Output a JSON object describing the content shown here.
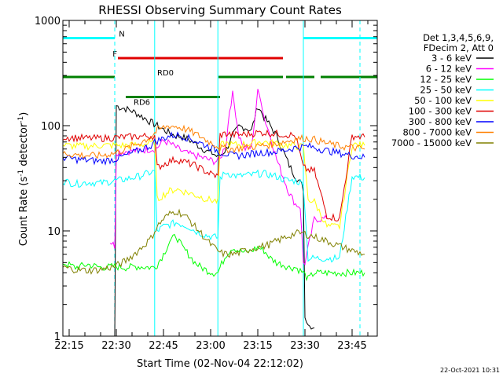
{
  "chart_data": {
    "type": "line",
    "title": "RHESSI Observing Summary Count Rates",
    "xlabel": "Start Time (02-Nov-04 22:12:02)",
    "ylabel_main": "Count Rate (s",
    "ylabel_sup1": "-1",
    "ylabel_mid": " detector",
    "ylabel_sup2": "-1",
    "ylabel_end": ")",
    "yscale": "log",
    "xlim_min": [
      0,
      100
    ],
    "ylim": [
      1,
      1000
    ],
    "xticks": [
      {
        "value": 2,
        "label": "22:15"
      },
      {
        "value": 17,
        "label": "22:30"
      },
      {
        "value": 32,
        "label": "22:45"
      },
      {
        "value": 47,
        "label": "23:00"
      },
      {
        "value": 62,
        "label": "23:15"
      },
      {
        "value": 77,
        "label": "23:30"
      },
      {
        "value": 92,
        "label": "23:45"
      }
    ],
    "yticks": [
      {
        "value": 1,
        "label": "1"
      },
      {
        "value": 10,
        "label": "10"
      },
      {
        "value": 100,
        "label": "100"
      },
      {
        "value": 1000,
        "label": "1000"
      }
    ],
    "legend_header": [
      "Det 1,3,4,5,6,9,",
      "FDecim 2, Att 0"
    ],
    "legend_position": "right",
    "timestamp": "22-Oct-2021 10:31",
    "state_bars": [
      {
        "label": "N",
        "color": "#00ffff",
        "segments": [
          [
            0,
            16.5
          ],
          [
            76.5,
            100
          ]
        ],
        "y": 1.5,
        "label_x": 17.8
      },
      {
        "label": "F",
        "color": "#e00000",
        "segments": [
          [
            17.5,
            70
          ]
        ],
        "y": 3.2,
        "label_x": 15.8
      },
      {
        "label": "RD0",
        "color": "#008000",
        "segments": [
          [
            0,
            16.5
          ],
          [
            49.5,
            70
          ],
          [
            71,
            80
          ],
          [
            82,
            100
          ]
        ],
        "y": 4.8,
        "label_x": 30
      },
      {
        "label": "RD6",
        "color": "#008000",
        "segments": [
          [
            20,
            50
          ]
        ],
        "y": 6.5,
        "label_x": 22.5
      }
    ],
    "vlines": [
      {
        "x": 16.5,
        "style": "dashed"
      },
      {
        "x": 94.5,
        "style": "dashed"
      },
      {
        "x": 29.2,
        "style": "solid"
      },
      {
        "x": 49.3,
        "style": "solid"
      },
      {
        "x": 76.5,
        "style": "solid"
      }
    ],
    "series": [
      {
        "name": "3 - 6 keV",
        "color": "#000000",
        "x": [
          16.5,
          17,
          18,
          20,
          22,
          24,
          26,
          28,
          30,
          32,
          34,
          36,
          38,
          40,
          42,
          44,
          46,
          48,
          49.3,
          50,
          52,
          54,
          56,
          58,
          60,
          62,
          64,
          66,
          68,
          70,
          72,
          74,
          75.5,
          76.5,
          77,
          78,
          79,
          80
        ],
        "y": [
          1,
          155,
          150,
          145,
          138,
          128,
          118,
          108,
          100,
          92,
          85,
          80,
          78,
          74,
          68,
          62,
          57,
          54,
          50,
          52,
          60,
          80,
          98,
          96,
          90,
          155,
          120,
          100,
          80,
          58,
          42,
          33,
          29,
          25,
          1.5,
          1.3,
          1.2,
          1.2
        ]
      },
      {
        "name": "6 - 12 keV",
        "color": "#ff00ff",
        "x": [
          15,
          16.5,
          17,
          20,
          24,
          28,
          29.2,
          30,
          32,
          34,
          36,
          38,
          40,
          42,
          44,
          46,
          48,
          49.3,
          50,
          52,
          53,
          54,
          55,
          56,
          58,
          60,
          62,
          63,
          64,
          66,
          68,
          70,
          72,
          74,
          75.5,
          76.5,
          77,
          80,
          82,
          84
        ],
        "y": [
          8,
          7.2,
          56,
          57,
          58,
          60,
          60,
          62,
          72,
          68,
          62,
          57,
          54,
          52,
          50,
          48,
          46,
          46,
          48,
          70,
          140,
          200,
          130,
          80,
          60,
          62,
          210,
          180,
          120,
          80,
          48,
          33,
          23,
          18,
          17,
          5,
          5,
          13,
          13,
          13
        ]
      },
      {
        "name": "12 - 25 keV",
        "color": "#00ff00",
        "x": [
          0,
          4,
          8,
          12,
          16.5,
          20,
          24,
          28,
          29.2,
          30,
          32,
          34,
          36,
          38,
          40,
          42,
          44,
          46,
          48,
          49.3,
          50,
          52,
          54,
          56,
          58,
          60,
          62,
          64,
          66,
          68,
          70,
          72,
          74,
          76.5,
          78,
          80,
          84,
          88,
          92,
          96
        ],
        "y": [
          5,
          4.5,
          4.8,
          4.5,
          4.6,
          4.5,
          4.6,
          4.5,
          4.5,
          4.8,
          6,
          8,
          9,
          7,
          6,
          5,
          4.5,
          4.2,
          4,
          4,
          4.5,
          6,
          7,
          6.5,
          6.2,
          6.5,
          7,
          6.5,
          5.5,
          5,
          4.8,
          4.5,
          4.5,
          4,
          3.5,
          4,
          4,
          4,
          4,
          4
        ]
      },
      {
        "name": "25 - 50 keV",
        "color": "#00ffff",
        "x": [
          0,
          4,
          8,
          12,
          16.5,
          20,
          24,
          28,
          29.2,
          30,
          32,
          34,
          36,
          38,
          40,
          42,
          44,
          46,
          48,
          49.3,
          50,
          52,
          54,
          56,
          58,
          60,
          62,
          64,
          66,
          68,
          70,
          72,
          74,
          76.5,
          78,
          80,
          84,
          88,
          92,
          96
        ],
        "y": [
          30,
          28,
          29,
          28.5,
          30,
          31,
          33,
          36,
          37,
          10,
          11,
          11.5,
          12,
          11.5,
          11,
          10,
          9.5,
          9,
          8.8,
          8.6,
          32,
          36,
          34,
          33,
          34,
          34,
          35,
          35,
          34,
          33,
          31,
          30,
          30,
          28,
          5.5,
          5.5,
          5.5,
          5.5,
          33,
          32
        ]
      },
      {
        "name": "50 - 100 keV",
        "color": "#ffff00",
        "x": [
          0,
          4,
          8,
          12,
          16.5,
          20,
          24,
          28,
          29.2,
          30,
          32,
          34,
          36,
          38,
          40,
          42,
          44,
          46,
          48,
          49.3,
          50,
          52,
          54,
          56,
          58,
          60,
          62,
          64,
          66,
          68,
          70,
          72,
          74,
          76.5,
          78,
          80,
          84,
          88,
          92,
          96
        ],
        "y": [
          65,
          64,
          64,
          65,
          65,
          65,
          66,
          68,
          69,
          20,
          22,
          24,
          25,
          24,
          23,
          22,
          21,
          20,
          19.5,
          19,
          65,
          68,
          66,
          66,
          67,
          68,
          70,
          70,
          69,
          68,
          66,
          65,
          64,
          63,
          20,
          19,
          11,
          11,
          66,
          65
        ]
      },
      {
        "name": "100 - 300 keV",
        "color": "#e00000",
        "x": [
          0,
          4,
          8,
          12,
          16.5,
          20,
          24,
          28,
          29.2,
          30,
          32,
          34,
          36,
          38,
          40,
          42,
          44,
          46,
          48,
          49.3,
          50,
          52,
          54,
          56,
          58,
          60,
          62,
          64,
          66,
          68,
          70,
          72,
          74,
          76.5,
          78,
          80,
          84,
          88,
          92,
          96
        ],
        "y": [
          78,
          77,
          76,
          76,
          77,
          78,
          79,
          80,
          80,
          40,
          43,
          46,
          48,
          46,
          44,
          42,
          39,
          36,
          34,
          33,
          82,
          84,
          82,
          82,
          83,
          84,
          86,
          86,
          85,
          84,
          83,
          82,
          80,
          40,
          38,
          37,
          14,
          13,
          80,
          78
        ]
      },
      {
        "name": "300 - 800 keV",
        "color": "#0000ff",
        "x": [
          0,
          4,
          8,
          12,
          16.5,
          20,
          24,
          28,
          29.2,
          30,
          32,
          34,
          36,
          38,
          40,
          42,
          44,
          46,
          48,
          49.3,
          50,
          52,
          54,
          56,
          58,
          60,
          62,
          64,
          66,
          68,
          70,
          72,
          74,
          76.5,
          78,
          80,
          84,
          88,
          92,
          96
        ],
        "y": [
          50,
          48,
          47,
          46,
          48,
          52,
          58,
          65,
          70,
          72,
          76,
          80,
          82,
          80,
          76,
          72,
          68,
          64,
          60,
          58,
          56,
          54,
          52,
          52,
          53,
          54,
          55,
          56,
          56,
          57,
          58,
          60,
          62,
          63,
          64,
          62,
          58,
          55,
          52,
          50
        ]
      },
      {
        "name": "800 - 7000 keV",
        "color": "#ff8000",
        "x": [
          0,
          4,
          8,
          12,
          16.5,
          20,
          24,
          28,
          29.2,
          30,
          32,
          34,
          36,
          38,
          40,
          42,
          44,
          46,
          48,
          49.3,
          50,
          52,
          54,
          56,
          58,
          60,
          62,
          64,
          66,
          68,
          70,
          72,
          74,
          76.5,
          78,
          80,
          84,
          88,
          92,
          96
        ],
        "y": [
          55,
          53,
          52,
          52,
          55,
          60,
          68,
          78,
          85,
          90,
          96,
          100,
          98,
          95,
          90,
          84,
          78,
          72,
          67,
          64,
          62,
          60,
          60,
          61,
          62,
          63,
          64,
          65,
          66,
          68,
          70,
          72,
          75,
          76,
          76,
          74,
          68,
          64,
          62,
          60
        ]
      },
      {
        "name": "7000 - 15000 keV",
        "color": "#808000",
        "x": [
          0,
          4,
          8,
          12,
          16.5,
          20,
          24,
          28,
          29.2,
          30,
          32,
          34,
          36,
          38,
          40,
          42,
          44,
          46,
          48,
          49.3,
          50,
          52,
          54,
          56,
          58,
          60,
          62,
          64,
          66,
          68,
          70,
          72,
          74,
          76.5,
          78,
          80,
          84,
          88,
          92,
          96
        ],
        "y": [
          4.5,
          4.3,
          4.2,
          4.3,
          4.6,
          5.2,
          6.5,
          8.5,
          10,
          11,
          13,
          14.5,
          15.5,
          14.5,
          13,
          11,
          9.5,
          8,
          7,
          6.5,
          6.2,
          6,
          6,
          6.2,
          6.5,
          6.8,
          7,
          7.2,
          7.5,
          8,
          8.5,
          9,
          9.5,
          9.5,
          9.2,
          8.8,
          8,
          7.2,
          6.5,
          6
        ]
      }
    ]
  }
}
